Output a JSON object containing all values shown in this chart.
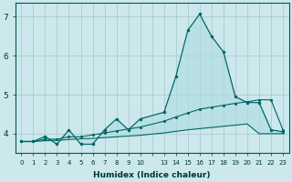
{
  "xlabel": "Humidex (Indice chaleur)",
  "bg_color": "#cce8ec",
  "grid_color": "#aacccc",
  "line_color": "#006666",
  "fill_color": "#b0dde0",
  "ylim": [
    3.5,
    7.35
  ],
  "xlim": [
    -0.5,
    22.5
  ],
  "yticks": [
    4,
    5,
    6,
    7
  ],
  "xtick_labels": [
    "0",
    "1",
    "2",
    "3",
    "4",
    "5",
    "6",
    "7",
    "8",
    "9",
    "10",
    "",
    "13",
    "14",
    "15",
    "16",
    "17",
    "18",
    "19",
    "20",
    "21",
    "22",
    "23"
  ],
  "line1_x": [
    0,
    1,
    2,
    3,
    4,
    5,
    6,
    7,
    8,
    9,
    10,
    12,
    13,
    14,
    15,
    16,
    17,
    18,
    19,
    20,
    21,
    22
  ],
  "line1_y": [
    3.8,
    3.8,
    3.93,
    3.73,
    4.1,
    3.73,
    3.73,
    4.1,
    4.38,
    4.1,
    4.38,
    4.55,
    5.47,
    6.65,
    7.07,
    6.5,
    6.1,
    4.95,
    4.8,
    4.8,
    4.1,
    4.05
  ],
  "line2_x": [
    0,
    1,
    2,
    3,
    4,
    5,
    6,
    7,
    8,
    9,
    10,
    12,
    13,
    14,
    15,
    16,
    17,
    18,
    19,
    20,
    21,
    22
  ],
  "line2_y": [
    3.8,
    3.8,
    3.86,
    3.86,
    3.92,
    3.92,
    3.97,
    4.02,
    4.07,
    4.12,
    4.17,
    4.32,
    4.43,
    4.53,
    4.63,
    4.68,
    4.73,
    4.78,
    4.82,
    4.87,
    4.87,
    4.1
  ],
  "line3_x": [
    0,
    1,
    2,
    3,
    4,
    5,
    6,
    7,
    8,
    9,
    10,
    12,
    13,
    14,
    15,
    16,
    17,
    18,
    19,
    20,
    21,
    22
  ],
  "line3_y": [
    3.8,
    3.8,
    3.82,
    3.83,
    3.85,
    3.87,
    3.88,
    3.9,
    3.92,
    3.94,
    3.96,
    4.02,
    4.06,
    4.1,
    4.13,
    4.16,
    4.19,
    4.22,
    4.25,
    4.0,
    4.0,
    4.0
  ]
}
